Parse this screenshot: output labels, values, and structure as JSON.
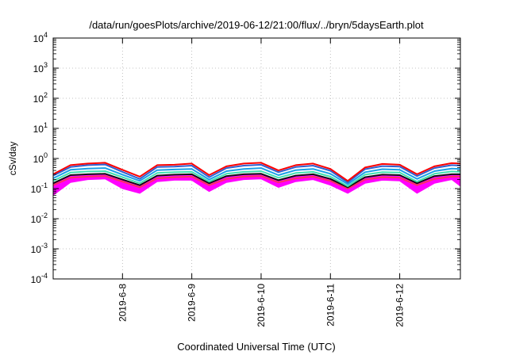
{
  "chart_data": {
    "type": "area",
    "title": "/data/run/goesPlots/archive/2019-06-12/21:00/flux/../bryn/5daysEarth.plot",
    "xlabel": "Coordinated Universal Time (UTC)",
    "ylabel": "cSv/day",
    "x_ticks": [
      "2019-6-8",
      "2019-6-9",
      "2019-6-10",
      "2019-6-11",
      "2019-6-12"
    ],
    "xlim": [
      "2019-06-07T00:00",
      "2019-06-12T21:00"
    ],
    "y_scale": "log",
    "ylim": [
      0.0001,
      10000
    ],
    "y_ticks": [
      {
        "base": "10",
        "exp": "-4"
      },
      {
        "base": "10",
        "exp": "-3"
      },
      {
        "base": "10",
        "exp": "-2"
      },
      {
        "base": "10",
        "exp": "-1"
      },
      {
        "base": "10",
        "exp": "0"
      },
      {
        "base": "10",
        "exp": "1"
      },
      {
        "base": "10",
        "exp": "2"
      },
      {
        "base": "10",
        "exp": "3"
      },
      {
        "base": "10",
        "exp": "4"
      }
    ],
    "grid": true,
    "legend": "none",
    "x": [
      "2019-06-07T00:00",
      "2019-06-07T06:00",
      "2019-06-07T12:00",
      "2019-06-07T18:00",
      "2019-06-08T00:00",
      "2019-06-08T06:00",
      "2019-06-08T12:00",
      "2019-06-08T18:00",
      "2019-06-09T00:00",
      "2019-06-09T06:00",
      "2019-06-09T12:00",
      "2019-06-09T18:00",
      "2019-06-10T00:00",
      "2019-06-10T06:00",
      "2019-06-10T12:00",
      "2019-06-10T18:00",
      "2019-06-11T00:00",
      "2019-06-11T06:00",
      "2019-06-11T12:00",
      "2019-06-11T18:00",
      "2019-06-12T00:00",
      "2019-06-12T06:00",
      "2019-06-12T12:00",
      "2019-06-12T18:00",
      "2019-06-12T21:00"
    ],
    "series": [
      {
        "color": "#ff0000",
        "values": [
          0.3,
          0.6,
          0.68,
          0.72,
          0.42,
          0.25,
          0.6,
          0.62,
          0.68,
          0.28,
          0.55,
          0.68,
          0.72,
          0.4,
          0.6,
          0.68,
          0.45,
          0.18,
          0.5,
          0.66,
          0.62,
          0.3,
          0.55,
          0.7,
          0.68
        ]
      },
      {
        "color": "#3060d0",
        "values": [
          0.27,
          0.52,
          0.6,
          0.63,
          0.36,
          0.21,
          0.52,
          0.54,
          0.58,
          0.24,
          0.48,
          0.58,
          0.62,
          0.35,
          0.52,
          0.58,
          0.39,
          0.16,
          0.44,
          0.56,
          0.54,
          0.26,
          0.48,
          0.6,
          0.58
        ]
      },
      {
        "color": "#1aa0e8",
        "values": [
          0.22,
          0.42,
          0.46,
          0.48,
          0.29,
          0.18,
          0.41,
          0.43,
          0.45,
          0.2,
          0.38,
          0.45,
          0.48,
          0.28,
          0.41,
          0.45,
          0.31,
          0.14,
          0.35,
          0.44,
          0.42,
          0.21,
          0.38,
          0.46,
          0.45
        ]
      },
      {
        "color": "#40e0b0",
        "values": [
          0.18,
          0.34,
          0.37,
          0.38,
          0.24,
          0.15,
          0.33,
          0.35,
          0.36,
          0.17,
          0.31,
          0.36,
          0.38,
          0.23,
          0.33,
          0.36,
          0.25,
          0.12,
          0.29,
          0.35,
          0.34,
          0.17,
          0.31,
          0.37,
          0.36
        ]
      },
      {
        "color": "#101010",
        "values": [
          0.15,
          0.28,
          0.3,
          0.31,
          0.2,
          0.13,
          0.27,
          0.29,
          0.3,
          0.15,
          0.26,
          0.3,
          0.31,
          0.19,
          0.27,
          0.3,
          0.21,
          0.11,
          0.24,
          0.29,
          0.28,
          0.15,
          0.26,
          0.3,
          0.3
        ]
      },
      {
        "color": "#ff3060",
        "values": [
          0.13,
          0.23,
          0.25,
          0.26,
          0.17,
          0.11,
          0.22,
          0.24,
          0.25,
          0.13,
          0.21,
          0.25,
          0.26,
          0.16,
          0.22,
          0.25,
          0.18,
          0.1,
          0.2,
          0.24,
          0.23,
          0.13,
          0.21,
          0.25,
          0.25
        ]
      },
      {
        "color": "#ff00ff",
        "values": [
          0.06,
          0.16,
          0.2,
          0.21,
          0.1,
          0.07,
          0.17,
          0.19,
          0.19,
          0.08,
          0.16,
          0.2,
          0.21,
          0.11,
          0.17,
          0.2,
          0.13,
          0.07,
          0.15,
          0.19,
          0.18,
          0.07,
          0.15,
          0.2,
          0.12
        ]
      }
    ]
  }
}
